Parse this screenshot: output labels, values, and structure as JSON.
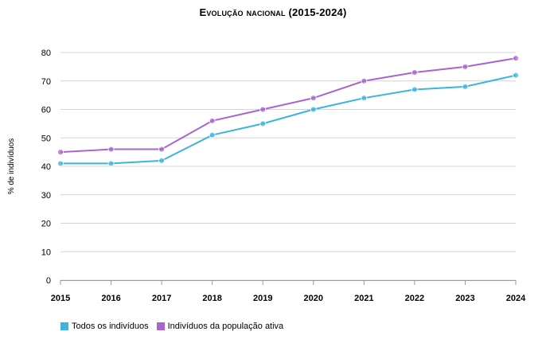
{
  "chart_data": {
    "type": "line",
    "title": "Evolução nacional (2015-2024)",
    "ylabel": "% de indivíduos",
    "xlabel": "",
    "x": [
      "2015",
      "2016",
      "2017",
      "2018",
      "2019",
      "2020",
      "2021",
      "2022",
      "2023",
      "2024"
    ],
    "ylim": [
      0,
      80
    ],
    "yticks": [
      0,
      10,
      20,
      30,
      40,
      50,
      60,
      70,
      80
    ],
    "grid": true,
    "legend_position": "bottom-left",
    "series": [
      {
        "name": "Todos os indivíduos",
        "color": "#3bb5de",
        "values": [
          41,
          41,
          42,
          51,
          55,
          60,
          64,
          67,
          68,
          72
        ]
      },
      {
        "name": "Indivíduos da população ativa",
        "color": "#a865cf",
        "values": [
          45,
          46,
          46,
          56,
          60,
          64,
          70,
          73,
          75,
          78
        ]
      }
    ]
  }
}
